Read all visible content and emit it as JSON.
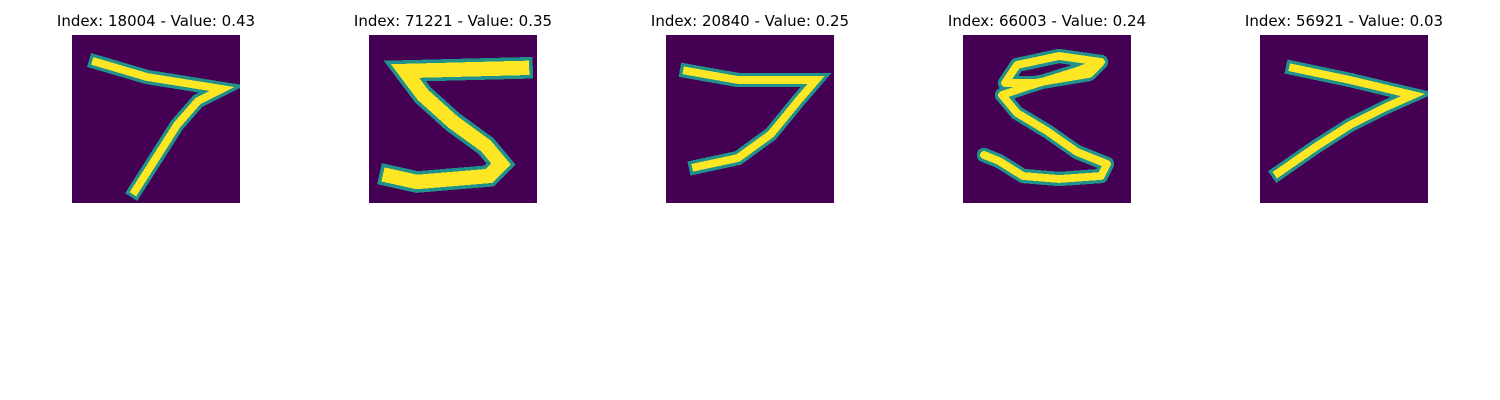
{
  "colors": {
    "background": "#440154",
    "stroke_mid": "#21918c",
    "stroke_high": "#fde725"
  },
  "panels": [
    {
      "title": "Index: 18004 - Value: 0.43",
      "digit": "7"
    },
    {
      "title": "Index: 71221 - Value: 0.35",
      "digit": "5"
    },
    {
      "title": "Index: 20840 - Value: 0.25",
      "digit": "7"
    },
    {
      "title": "Index: 66003 - Value: 0.24",
      "digit": "5"
    },
    {
      "title": "Index: 56921 - Value: 0.03",
      "digit": "7"
    }
  ]
}
